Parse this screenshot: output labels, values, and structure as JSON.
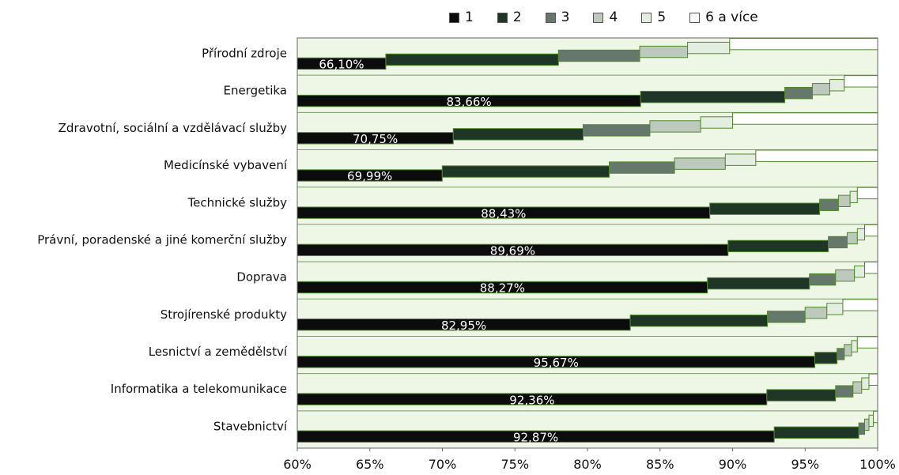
{
  "chart_data": {
    "type": "bar",
    "stacked": true,
    "orientation": "horizontal",
    "xlim": [
      0.6,
      1.0
    ],
    "x_ticks": [
      "60%",
      "65%",
      "70%",
      "75%",
      "80%",
      "85%",
      "90%",
      "95%",
      "100%"
    ],
    "x_tick_values": [
      0.6,
      0.65,
      0.7,
      0.75,
      0.8,
      0.85,
      0.9,
      0.95,
      1.0
    ],
    "grid": false,
    "legend_position": "top",
    "categories": [
      "Přírodní zdroje",
      "Energetika",
      "Zdravotní, sociální a vzdělávací služby",
      "Medicínské vybavení",
      "Technické služby",
      "Právní, poradenské a jiné komerční služby",
      "Doprava",
      "Strojírenské produkty",
      "Lesnictví a zemědělství",
      "Informatika a telekomunikace",
      "Stavebnictví"
    ],
    "series": [
      {
        "name": "1",
        "color": "#0c0c0c",
        "cumulative": [
          0.661,
          0.8366,
          0.7075,
          0.6999,
          0.8843,
          0.8969,
          0.8827,
          0.8295,
          0.9567,
          0.9236,
          0.9287
        ]
      },
      {
        "name": "2",
        "color": "#1f3526",
        "cumulative": [
          0.78,
          0.936,
          0.797,
          0.815,
          0.96,
          0.966,
          0.953,
          0.924,
          0.972,
          0.971,
          0.987
        ]
      },
      {
        "name": "3",
        "color": "#66786c",
        "cumulative": [
          0.836,
          0.955,
          0.843,
          0.86,
          0.973,
          0.979,
          0.971,
          0.95,
          0.977,
          0.983,
          0.991
        ]
      },
      {
        "name": "4",
        "color": "#bcc9bc",
        "cumulative": [
          0.869,
          0.967,
          0.878,
          0.895,
          0.981,
          0.986,
          0.984,
          0.965,
          0.982,
          0.989,
          0.994
        ]
      },
      {
        "name": "5",
        "color": "#e3ede0",
        "cumulative": [
          0.898,
          0.977,
          0.9,
          0.916,
          0.986,
          0.991,
          0.991,
          0.976,
          0.986,
          0.994,
          0.997
        ]
      },
      {
        "name": "6 a více",
        "color": "#ffffff",
        "cumulative": [
          1.0,
          1.0,
          1.0,
          1.0,
          1.0,
          1.0,
          1.0,
          1.0,
          1.0,
          1.0,
          1.0
        ]
      }
    ],
    "data_labels": [
      "66,10%",
      "83,66%",
      "70,75%",
      "69,99%",
      "88,43%",
      "89,69%",
      "88,27%",
      "82,95%",
      "95,67%",
      "92,36%",
      "92,87%"
    ]
  },
  "legend": [
    {
      "name": "1",
      "color": "#0c0c0c"
    },
    {
      "name": "2",
      "color": "#1f3526"
    },
    {
      "name": "3",
      "color": "#66786c"
    },
    {
      "name": "4",
      "color": "#bcc9bc"
    },
    {
      "name": "5",
      "color": "#e3ede0"
    },
    {
      "name": "6 a více",
      "color": "#ffffff"
    }
  ]
}
